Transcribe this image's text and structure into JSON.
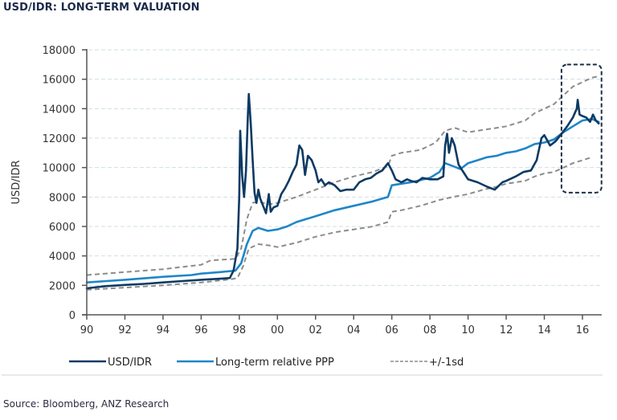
{
  "title": "USD/IDR: LONG-TERM VALUATION",
  "source": "Source: Bloomberg, ANZ Research",
  "chart_data": {
    "type": "line",
    "title": "USD/IDR: LONG-TERM VALUATION",
    "xlabel": "",
    "ylabel": "USD/IDR",
    "xlim": [
      1990,
      2016.9
    ],
    "ylim": [
      0,
      18000
    ],
    "x_tick_labels": [
      "90",
      "92",
      "94",
      "96",
      "98",
      "00",
      "02",
      "04",
      "06",
      "08",
      "10",
      "12",
      "14",
      "16"
    ],
    "x_tick_values": [
      1990,
      1992,
      1994,
      1996,
      1998,
      2000,
      2002,
      2004,
      2006,
      2008,
      2010,
      2012,
      2014,
      2016
    ],
    "y_tick_labels": [
      "0",
      "2000",
      "4000",
      "6000",
      "8000",
      "10000",
      "12000",
      "14000",
      "16000",
      "18000"
    ],
    "y_tick_values": [
      0,
      2000,
      4000,
      6000,
      8000,
      10000,
      12000,
      14000,
      16000,
      18000
    ],
    "grid": "horizontal dashed",
    "legend_position": "bottom",
    "colors": {
      "usdidr": "#0d3a63",
      "ppp": "#1f86c8",
      "band": "#8c8c8c",
      "highlight": "#1b2f4a",
      "grid": "#cfdfe6"
    },
    "annotation": {
      "type": "dashed-rounded-box",
      "x_range": [
        2014.9,
        2017.0
      ],
      "y_range": [
        8300,
        17000
      ]
    },
    "series": [
      {
        "name": "USD/IDR",
        "style": "solid",
        "points": [
          [
            1990,
            1800
          ],
          [
            1991,
            1950
          ],
          [
            1992,
            2030
          ],
          [
            1993,
            2100
          ],
          [
            1994,
            2200
          ],
          [
            1995,
            2290
          ],
          [
            1996,
            2380
          ],
          [
            1997,
            2450
          ],
          [
            1997.5,
            2500
          ],
          [
            1997.7,
            3000
          ],
          [
            1997.9,
            4500
          ],
          [
            1998.0,
            8000
          ],
          [
            1998.05,
            12500
          ],
          [
            1998.15,
            9500
          ],
          [
            1998.25,
            8000
          ],
          [
            1998.35,
            9800
          ],
          [
            1998.45,
            13500
          ],
          [
            1998.5,
            15000
          ],
          [
            1998.6,
            13000
          ],
          [
            1998.7,
            10500
          ],
          [
            1998.8,
            8300
          ],
          [
            1998.9,
            7600
          ],
          [
            1999.0,
            8500
          ],
          [
            1999.1,
            7900
          ],
          [
            1999.25,
            7400
          ],
          [
            1999.4,
            6900
          ],
          [
            1999.55,
            8200
          ],
          [
            1999.65,
            7000
          ],
          [
            1999.8,
            7300
          ],
          [
            2000.0,
            7400
          ],
          [
            2000.2,
            8200
          ],
          [
            2000.4,
            8600
          ],
          [
            2000.6,
            9100
          ],
          [
            2000.8,
            9700
          ],
          [
            2001.0,
            10200
          ],
          [
            2001.15,
            11500
          ],
          [
            2001.3,
            11200
          ],
          [
            2001.45,
            9500
          ],
          [
            2001.6,
            10800
          ],
          [
            2001.8,
            10500
          ],
          [
            2002.0,
            9800
          ],
          [
            2002.15,
            9000
          ],
          [
            2002.3,
            9200
          ],
          [
            2002.5,
            8800
          ],
          [
            2002.7,
            9000
          ],
          [
            2003.0,
            8800
          ],
          [
            2003.3,
            8400
          ],
          [
            2003.6,
            8500
          ],
          [
            2004.0,
            8500
          ],
          [
            2004.3,
            9000
          ],
          [
            2004.6,
            9200
          ],
          [
            2004.9,
            9300
          ],
          [
            2005.2,
            9600
          ],
          [
            2005.5,
            9800
          ],
          [
            2005.8,
            10300
          ],
          [
            2006.0,
            9800
          ],
          [
            2006.2,
            9200
          ],
          [
            2006.5,
            9000
          ],
          [
            2006.8,
            9200
          ],
          [
            2007.0,
            9100
          ],
          [
            2007.3,
            9000
          ],
          [
            2007.6,
            9300
          ],
          [
            2008.0,
            9200
          ],
          [
            2008.4,
            9200
          ],
          [
            2008.7,
            9400
          ],
          [
            2008.8,
            11500
          ],
          [
            2008.9,
            12300
          ],
          [
            2009.0,
            11000
          ],
          [
            2009.15,
            12000
          ],
          [
            2009.3,
            11500
          ],
          [
            2009.5,
            10200
          ],
          [
            2009.8,
            9600
          ],
          [
            2010.0,
            9200
          ],
          [
            2010.5,
            9000
          ],
          [
            2011.0,
            8700
          ],
          [
            2011.4,
            8500
          ],
          [
            2011.8,
            9000
          ],
          [
            2012.0,
            9100
          ],
          [
            2012.5,
            9400
          ],
          [
            2012.9,
            9700
          ],
          [
            2013.3,
            9800
          ],
          [
            2013.6,
            10500
          ],
          [
            2013.85,
            12000
          ],
          [
            2014.0,
            12200
          ],
          [
            2014.3,
            11500
          ],
          [
            2014.6,
            11800
          ],
          [
            2014.9,
            12300
          ],
          [
            2015.2,
            12800
          ],
          [
            2015.5,
            13400
          ],
          [
            2015.7,
            14000
          ],
          [
            2015.75,
            14600
          ],
          [
            2015.85,
            13600
          ],
          [
            2016.0,
            13500
          ],
          [
            2016.2,
            13400
          ],
          [
            2016.4,
            13100
          ],
          [
            2016.55,
            13600
          ],
          [
            2016.7,
            13200
          ],
          [
            2016.85,
            13000
          ]
        ]
      },
      {
        "name": "Long-term relative PPP",
        "style": "solid",
        "points": [
          [
            1990,
            2200
          ],
          [
            1992,
            2380
          ],
          [
            1994,
            2580
          ],
          [
            1995.5,
            2700
          ],
          [
            1996,
            2800
          ],
          [
            1997,
            2900
          ],
          [
            1997.8,
            3000
          ],
          [
            1998.1,
            3500
          ],
          [
            1998.4,
            4800
          ],
          [
            1998.7,
            5700
          ],
          [
            1999.0,
            5900
          ],
          [
            1999.5,
            5700
          ],
          [
            2000.0,
            5800
          ],
          [
            2000.5,
            6000
          ],
          [
            2001.0,
            6300
          ],
          [
            2002.0,
            6700
          ],
          [
            2003.0,
            7100
          ],
          [
            2004.0,
            7400
          ],
          [
            2005.0,
            7700
          ],
          [
            2005.8,
            8000
          ],
          [
            2006.0,
            8800
          ],
          [
            2006.5,
            8900
          ],
          [
            2007.0,
            9000
          ],
          [
            2008.0,
            9300
          ],
          [
            2008.5,
            9700
          ],
          [
            2008.8,
            10300
          ],
          [
            2009.2,
            10100
          ],
          [
            2009.6,
            9900
          ],
          [
            2010.0,
            10300
          ],
          [
            2010.5,
            10500
          ],
          [
            2011.0,
            10700
          ],
          [
            2011.5,
            10800
          ],
          [
            2012.0,
            11000
          ],
          [
            2012.5,
            11100
          ],
          [
            2013.0,
            11300
          ],
          [
            2013.5,
            11600
          ],
          [
            2014.0,
            11700
          ],
          [
            2014.5,
            11900
          ],
          [
            2015.0,
            12400
          ],
          [
            2015.5,
            12800
          ],
          [
            2016.0,
            13200
          ],
          [
            2016.5,
            13300
          ],
          [
            2016.85,
            13100
          ]
        ]
      },
      {
        "name": "+/-1sd (upper)",
        "style": "dashed",
        "points": [
          [
            1990,
            2700
          ],
          [
            1992,
            2900
          ],
          [
            1994,
            3100
          ],
          [
            1996,
            3400
          ],
          [
            1996.5,
            3700
          ],
          [
            1997.8,
            3800
          ],
          [
            1998.1,
            4500
          ],
          [
            1998.4,
            6500
          ],
          [
            1998.7,
            7600
          ],
          [
            1999.0,
            7700
          ],
          [
            1999.5,
            7500
          ],
          [
            2000.0,
            7600
          ],
          [
            2001.0,
            8000
          ],
          [
            2002.0,
            8500
          ],
          [
            2003.0,
            9000
          ],
          [
            2004.0,
            9400
          ],
          [
            2005.0,
            9700
          ],
          [
            2005.8,
            10100
          ],
          [
            2006.0,
            10800
          ],
          [
            2006.5,
            11000
          ],
          [
            2007.5,
            11200
          ],
          [
            2008.3,
            11700
          ],
          [
            2008.8,
            12500
          ],
          [
            2009.3,
            12700
          ],
          [
            2010.0,
            12400
          ],
          [
            2011.0,
            12600
          ],
          [
            2011.5,
            12700
          ],
          [
            2012.0,
            12800
          ],
          [
            2012.5,
            13000
          ],
          [
            2013.0,
            13200
          ],
          [
            2013.5,
            13700
          ],
          [
            2014.0,
            14000
          ],
          [
            2014.5,
            14300
          ],
          [
            2015.0,
            14900
          ],
          [
            2015.5,
            15500
          ],
          [
            2016.0,
            15800
          ],
          [
            2016.5,
            16100
          ],
          [
            2016.85,
            16200
          ]
        ]
      },
      {
        "name": "+/-1sd (lower)",
        "style": "dashed",
        "points": [
          [
            1990,
            1700
          ],
          [
            1992,
            1850
          ],
          [
            1994,
            2000
          ],
          [
            1996,
            2200
          ],
          [
            1997.5,
            2400
          ],
          [
            1997.9,
            2500
          ],
          [
            1998.2,
            3300
          ],
          [
            1998.5,
            4500
          ],
          [
            1999.0,
            4800
          ],
          [
            1999.6,
            4700
          ],
          [
            2000.0,
            4600
          ],
          [
            2001.0,
            4900
          ],
          [
            2002.0,
            5300
          ],
          [
            2003.0,
            5600
          ],
          [
            2004.0,
            5800
          ],
          [
            2005.0,
            6000
          ],
          [
            2005.8,
            6300
          ],
          [
            2006.0,
            7000
          ],
          [
            2006.5,
            7100
          ],
          [
            2007.5,
            7400
          ],
          [
            2008.5,
            7800
          ],
          [
            2009.2,
            8000
          ],
          [
            2010.0,
            8200
          ],
          [
            2010.8,
            8500
          ],
          [
            2011.5,
            8700
          ],
          [
            2012.0,
            8900
          ],
          [
            2012.5,
            9000
          ],
          [
            2013.0,
            9100
          ],
          [
            2013.5,
            9400
          ],
          [
            2014.0,
            9600
          ],
          [
            2014.5,
            9700
          ],
          [
            2015.0,
            10000
          ],
          [
            2015.5,
            10300
          ],
          [
            2016.0,
            10500
          ],
          [
            2016.5,
            10700
          ]
        ]
      }
    ],
    "legend": [
      {
        "label": "USD/IDR",
        "key": "usdidr"
      },
      {
        "label": "Long-term relative PPP",
        "key": "ppp"
      },
      {
        "label": "+/-1sd",
        "key": "band"
      }
    ]
  }
}
